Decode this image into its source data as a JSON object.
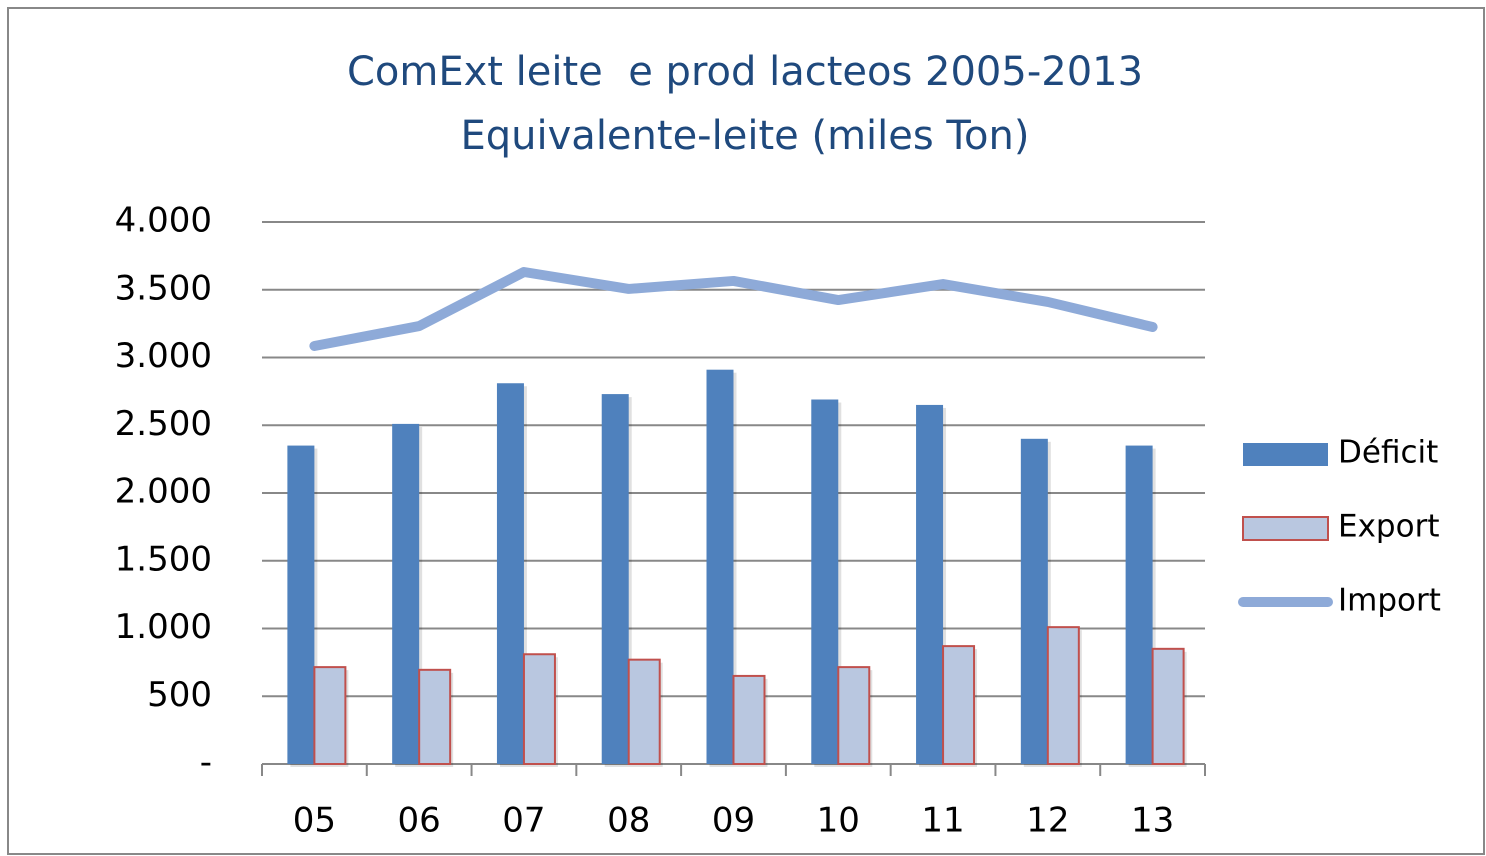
{
  "chart_data": {
    "type": "bar_line",
    "title": "ComExt leite  e prod lacteos 2005-2013",
    "subtitle": "Equivalente-leite (miles Ton)",
    "categories": [
      "05",
      "06",
      "07",
      "08",
      "09",
      "10",
      "11",
      "12",
      "13"
    ],
    "series": [
      {
        "name": "Déficit",
        "type": "bar",
        "color": "#4f81bd",
        "values": [
          2350,
          2510,
          2810,
          2730,
          2910,
          2690,
          2650,
          2400,
          2350
        ]
      },
      {
        "name": "Export",
        "type": "bar",
        "color": "#b9c7e0",
        "edge_color": "#c0504d",
        "values": [
          715,
          695,
          810,
          770,
          650,
          715,
          870,
          1010,
          850
        ]
      },
      {
        "name": "Import",
        "type": "line",
        "color": "#8eaad8",
        "values": [
          3085,
          3232,
          3631,
          3506,
          3565,
          3424,
          3542,
          3410,
          3225
        ]
      }
    ],
    "ylim": [
      0,
      4000
    ],
    "yticks": [
      {
        "value": 0,
        "label": "-"
      },
      500,
      {
        "value": 1000,
        "label": "1.000"
      },
      {
        "value": 1500,
        "label": "1.500"
      },
      {
        "value": 2000,
        "label": "2.000"
      },
      {
        "value": 2500,
        "label": "2.500"
      },
      {
        "value": 3000,
        "label": "3.000"
      },
      {
        "value": 3500,
        "label": "3.500"
      },
      {
        "value": 4000,
        "label": "4.000"
      }
    ],
    "grid": true,
    "legend": "right"
  }
}
